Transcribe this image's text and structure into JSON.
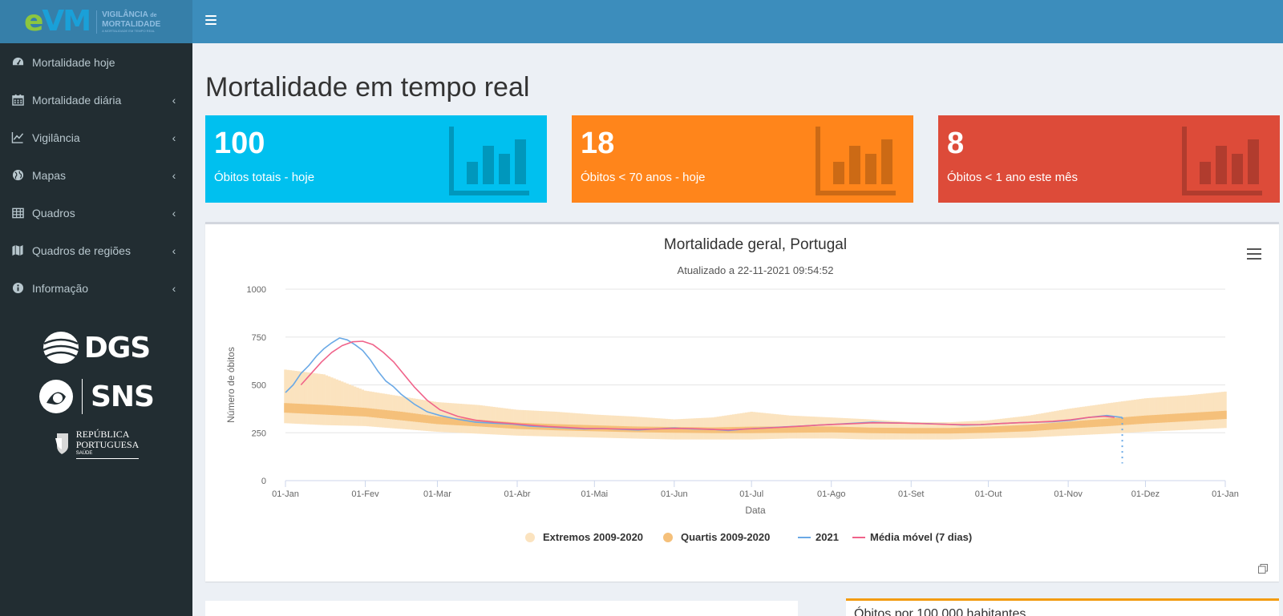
{
  "logo": {
    "mark_e": "e",
    "mark_vm": "VM",
    "line1": "VIGILÂNCIA",
    "line1_small": "de",
    "line2": "MORTALIDADE",
    "line3": "A MORTALIDADE EM TEMPO REAL"
  },
  "sidebar": {
    "items": [
      {
        "label": "Mortalidade hoje",
        "icon": "dashboard-icon",
        "chevron": false
      },
      {
        "label": "Mortalidade diária",
        "icon": "calendar-icon",
        "chevron": true
      },
      {
        "label": "Vigilância",
        "icon": "line-chart-icon",
        "chevron": true
      },
      {
        "label": "Mapas",
        "icon": "globe-icon",
        "chevron": true
      },
      {
        "label": "Quadros",
        "icon": "table-icon",
        "chevron": true
      },
      {
        "label": "Quadros de regiões",
        "icon": "map-icon",
        "chevron": true
      },
      {
        "label": "Informação",
        "icon": "info-icon",
        "chevron": true
      }
    ],
    "orgs": {
      "dgs": "DGS",
      "sns": "SNS",
      "rep_line1": "REPÚBLICA",
      "rep_line2": "PORTUGUESA",
      "rep_line3": "SAÚDE"
    }
  },
  "page": {
    "title": "Mortalidade em tempo real"
  },
  "stats": [
    {
      "value": "100",
      "caption": "Óbitos totais - hoje",
      "color": "#00c0ef",
      "icon_color": "#0097bc"
    },
    {
      "value": "18",
      "caption": "Óbitos < 70 anos - hoje",
      "color": "#ff851b",
      "icon_color": "#cc6a15"
    },
    {
      "value": "8",
      "caption": "Óbitos < 1 ano este mês",
      "color": "#dd4b39",
      "icon_color": "#b13c2e"
    }
  ],
  "chart_data": {
    "type": "line",
    "title": "Mortalidade geral, Portugal",
    "subtitle": "Atualizado a 22-11-2021 09:54:52",
    "xlabel": "Data",
    "ylabel": "Número de óbitos",
    "ylim": [
      0,
      1000
    ],
    "yticks": [
      "0",
      "250",
      "500",
      "750",
      "1000"
    ],
    "xticks": [
      "01-Jan",
      "01-Fev",
      "01-Mar",
      "01-Abr",
      "01-Mai",
      "01-Jun",
      "01-Jul",
      "01-Ago",
      "01-Set",
      "01-Out",
      "01-Nov",
      "01-Dez",
      "01-Jan"
    ],
    "tick_days": [
      0,
      31,
      59,
      90,
      120,
      151,
      181,
      212,
      243,
      273,
      304,
      334,
      365
    ],
    "grid": true,
    "legend_position": "bottom-center",
    "colors": {
      "extremes": "#fbe3bf",
      "quartiles": "#f5c07a",
      "year": "#6aa9e6",
      "moving_avg": "#f0638a",
      "today": "#6aa9e6"
    },
    "series": [
      {
        "name": "Extremos 2009-2020",
        "x_days": [
          0,
          15,
          31,
          45,
          59,
          75,
          90,
          105,
          120,
          135,
          151,
          166,
          181,
          196,
          212,
          227,
          243,
          258,
          273,
          289,
          304,
          320,
          334,
          350,
          365
        ],
        "low": [
          300,
          290,
          285,
          270,
          255,
          245,
          235,
          230,
          225,
          220,
          215,
          215,
          215,
          220,
          220,
          215,
          215,
          215,
          220,
          225,
          235,
          245,
          255,
          265,
          275
        ],
        "high": [
          580,
          555,
          470,
          440,
          410,
          395,
          370,
          360,
          345,
          335,
          320,
          330,
          360,
          340,
          330,
          320,
          305,
          305,
          315,
          340,
          375,
          405,
          430,
          445,
          465
        ]
      },
      {
        "name": "Quartis 2009-2020",
        "x_days": [
          0,
          15,
          31,
          45,
          59,
          75,
          90,
          105,
          120,
          135,
          151,
          166,
          181,
          196,
          212,
          227,
          243,
          258,
          273,
          289,
          304,
          320,
          334,
          350,
          365
        ],
        "low": [
          355,
          345,
          335,
          315,
          295,
          283,
          270,
          263,
          258,
          253,
          250,
          248,
          248,
          250,
          252,
          248,
          246,
          246,
          250,
          258,
          272,
          285,
          298,
          310,
          322
        ],
        "high": [
          405,
          395,
          380,
          360,
          335,
          318,
          303,
          295,
          289,
          283,
          280,
          278,
          282,
          283,
          283,
          277,
          275,
          275,
          282,
          292,
          308,
          325,
          340,
          353,
          365
        ]
      },
      {
        "name": "2021",
        "x_days": [
          0,
          3,
          6,
          9,
          12,
          15,
          18,
          21,
          24,
          27,
          30,
          33,
          36,
          39,
          42,
          45,
          50,
          55,
          60,
          67,
          74,
          81,
          88,
          95,
          102,
          109,
          116,
          123,
          130,
          137,
          144,
          151,
          158,
          165,
          172,
          179,
          186,
          193,
          200,
          207,
          214,
          221,
          228,
          235,
          242,
          249,
          256,
          263,
          270,
          277,
          284,
          291,
          298,
          305,
          312,
          319,
          322,
          325
        ],
        "values": [
          460,
          500,
          560,
          600,
          650,
          690,
          720,
          745,
          735,
          710,
          680,
          630,
          570,
          520,
          490,
          450,
          400,
          360,
          340,
          320,
          305,
          300,
          295,
          285,
          280,
          275,
          270,
          272,
          268,
          265,
          270,
          275,
          270,
          268,
          262,
          270,
          275,
          280,
          285,
          290,
          295,
          300,
          305,
          302,
          300,
          298,
          295,
          290,
          292,
          298,
          302,
          305,
          308,
          315,
          330,
          340,
          335,
          330
        ]
      },
      {
        "name": "Média móvel (7 dias)",
        "x_days": [
          6,
          10,
          14,
          18,
          22,
          26,
          30,
          34,
          38,
          42,
          46,
          50,
          55,
          60,
          67,
          74,
          81,
          88,
          95,
          102,
          109,
          116,
          123,
          130,
          137,
          144,
          151,
          158,
          165,
          172,
          179,
          186,
          193,
          200,
          207,
          214,
          221,
          228,
          235,
          242,
          249,
          256,
          263,
          270,
          277,
          284,
          291,
          298,
          305,
          312,
          318,
          322
        ],
        "values": [
          500,
          560,
          620,
          670,
          705,
          725,
          728,
          710,
          670,
          620,
          555,
          490,
          420,
          370,
          335,
          315,
          305,
          298,
          290,
          283,
          278,
          273,
          272,
          270,
          268,
          270,
          273,
          272,
          268,
          265,
          270,
          274,
          279,
          284,
          290,
          294,
          298,
          302,
          301,
          300,
          297,
          294,
          292,
          293,
          298,
          302,
          305,
          310,
          318,
          330,
          336,
          330
        ]
      }
    ],
    "today_day": 325
  },
  "bottom": {
    "right_title": "Óbitos por 100.000 habitantes"
  }
}
